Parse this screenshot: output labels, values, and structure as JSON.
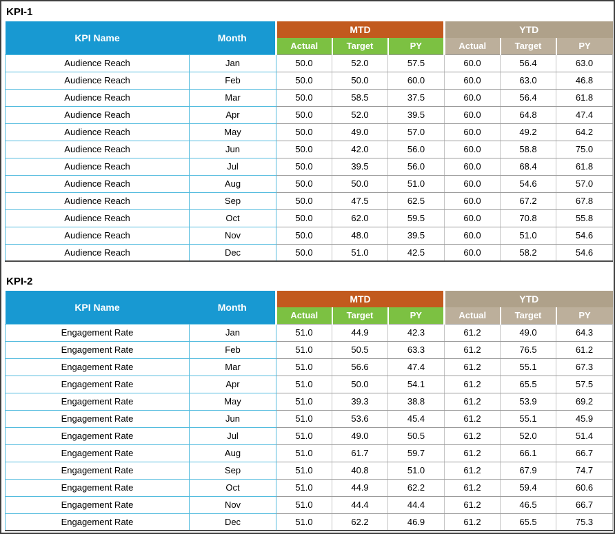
{
  "colors": {
    "header_blue": "#1899D2",
    "mtd_orange": "#C25A1E",
    "mtd_subheader_green": "#7CC142",
    "ytd_tan": "#AFA18A",
    "ytd_subheader_tan": "#BCAF9B",
    "name_cell_border_blue": "#52BBDE",
    "frame_border": "#3f3f3f"
  },
  "tables": [
    {
      "title": "KPI-1",
      "kpi_name_header": "KPI Name",
      "month_header": "Month",
      "groups": [
        {
          "label": "MTD"
        },
        {
          "label": "YTD"
        }
      ],
      "subheaders": [
        "Actual",
        "Target",
        "PY"
      ],
      "rows": [
        {
          "kpi": "Audience Reach",
          "month": "Jan",
          "values": [
            "50.0",
            "52.0",
            "57.5",
            "60.0",
            "56.4",
            "63.0"
          ]
        },
        {
          "kpi": "Audience Reach",
          "month": "Feb",
          "values": [
            "50.0",
            "50.0",
            "60.0",
            "60.0",
            "63.0",
            "46.8"
          ]
        },
        {
          "kpi": "Audience Reach",
          "month": "Mar",
          "values": [
            "50.0",
            "58.5",
            "37.5",
            "60.0",
            "56.4",
            "61.8"
          ]
        },
        {
          "kpi": "Audience Reach",
          "month": "Apr",
          "values": [
            "50.0",
            "52.0",
            "39.5",
            "60.0",
            "64.8",
            "47.4"
          ]
        },
        {
          "kpi": "Audience Reach",
          "month": "May",
          "values": [
            "50.0",
            "49.0",
            "57.0",
            "60.0",
            "49.2",
            "64.2"
          ]
        },
        {
          "kpi": "Audience Reach",
          "month": "Jun",
          "values": [
            "50.0",
            "42.0",
            "56.0",
            "60.0",
            "58.8",
            "75.0"
          ]
        },
        {
          "kpi": "Audience Reach",
          "month": "Jul",
          "values": [
            "50.0",
            "39.5",
            "56.0",
            "60.0",
            "68.4",
            "61.8"
          ]
        },
        {
          "kpi": "Audience Reach",
          "month": "Aug",
          "values": [
            "50.0",
            "50.0",
            "51.0",
            "60.0",
            "54.6",
            "57.0"
          ]
        },
        {
          "kpi": "Audience Reach",
          "month": "Sep",
          "values": [
            "50.0",
            "47.5",
            "62.5",
            "60.0",
            "67.2",
            "67.8"
          ]
        },
        {
          "kpi": "Audience Reach",
          "month": "Oct",
          "values": [
            "50.0",
            "62.0",
            "59.5",
            "60.0",
            "70.8",
            "55.8"
          ]
        },
        {
          "kpi": "Audience Reach",
          "month": "Nov",
          "values": [
            "50.0",
            "48.0",
            "39.5",
            "60.0",
            "51.0",
            "54.6"
          ]
        },
        {
          "kpi": "Audience Reach",
          "month": "Dec",
          "values": [
            "50.0",
            "51.0",
            "42.5",
            "60.0",
            "58.2",
            "54.6"
          ]
        }
      ]
    },
    {
      "title": "KPI-2",
      "kpi_name_header": "KPI Name",
      "month_header": "Month",
      "groups": [
        {
          "label": "MTD"
        },
        {
          "label": "YTD"
        }
      ],
      "subheaders": [
        "Actual",
        "Target",
        "PY"
      ],
      "rows": [
        {
          "kpi": "Engagement Rate",
          "month": "Jan",
          "values": [
            "51.0",
            "44.9",
            "42.3",
            "61.2",
            "49.0",
            "64.3"
          ]
        },
        {
          "kpi": "Engagement Rate",
          "month": "Feb",
          "values": [
            "51.0",
            "50.5",
            "63.3",
            "61.2",
            "76.5",
            "61.2"
          ]
        },
        {
          "kpi": "Engagement Rate",
          "month": "Mar",
          "values": [
            "51.0",
            "56.6",
            "47.4",
            "61.2",
            "55.1",
            "67.3"
          ]
        },
        {
          "kpi": "Engagement Rate",
          "month": "Apr",
          "values": [
            "51.0",
            "50.0",
            "54.1",
            "61.2",
            "65.5",
            "57.5"
          ]
        },
        {
          "kpi": "Engagement Rate",
          "month": "May",
          "values": [
            "51.0",
            "39.3",
            "38.8",
            "61.2",
            "53.9",
            "69.2"
          ]
        },
        {
          "kpi": "Engagement Rate",
          "month": "Jun",
          "values": [
            "51.0",
            "53.6",
            "45.4",
            "61.2",
            "55.1",
            "45.9"
          ]
        },
        {
          "kpi": "Engagement Rate",
          "month": "Jul",
          "values": [
            "51.0",
            "49.0",
            "50.5",
            "61.2",
            "52.0",
            "51.4"
          ]
        },
        {
          "kpi": "Engagement Rate",
          "month": "Aug",
          "values": [
            "51.0",
            "61.7",
            "59.7",
            "61.2",
            "66.1",
            "66.7"
          ]
        },
        {
          "kpi": "Engagement Rate",
          "month": "Sep",
          "values": [
            "51.0",
            "40.8",
            "51.0",
            "61.2",
            "67.9",
            "74.7"
          ]
        },
        {
          "kpi": "Engagement Rate",
          "month": "Oct",
          "values": [
            "51.0",
            "44.9",
            "62.2",
            "61.2",
            "59.4",
            "60.6"
          ]
        },
        {
          "kpi": "Engagement Rate",
          "month": "Nov",
          "values": [
            "51.0",
            "44.4",
            "44.4",
            "61.2",
            "46.5",
            "66.7"
          ]
        },
        {
          "kpi": "Engagement Rate",
          "month": "Dec",
          "values": [
            "51.0",
            "62.2",
            "46.9",
            "61.2",
            "65.5",
            "75.3"
          ]
        }
      ]
    }
  ]
}
